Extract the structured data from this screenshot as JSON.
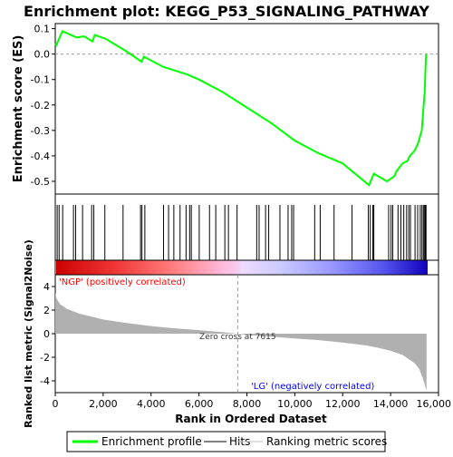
{
  "chart_data": {
    "type": "line",
    "title": "Enrichment plot: KEGG_P53_SIGNALING_PATHWAY",
    "xlabel": "Rank in Ordered Dataset",
    "xlim": [
      0,
      16000
    ],
    "x_ticks": [
      "0",
      "2,000",
      "4,000",
      "6,000",
      "8,000",
      "10,000",
      "12,000",
      "14,000",
      "16,000"
    ],
    "panels": {
      "es": {
        "ylabel": "Enrichment score (ES)",
        "ylim": [
          -0.55,
          0.12
        ],
        "y_ticks": [
          "0.1",
          "0.0",
          "-0.1",
          "-0.2",
          "-0.3",
          "-0.4",
          "-0.5"
        ],
        "series": [
          {
            "name": "Enrichment profile",
            "color": "#00ff00",
            "x": [
              0,
              40,
              300,
              900,
              1200,
              1550,
              1650,
              2100,
              2900,
              3300,
              3600,
              3700,
              4500,
              5500,
              6000,
              7000,
              8000,
              9000,
              10000,
              11000,
              12000,
              13100,
              13300,
              13850,
              14000,
              14150,
              14250,
              14500,
              14700,
              14800,
              15000,
              15150,
              15300,
              15380,
              15420,
              15460,
              15480
            ],
            "y": [
              0.04,
              0.035,
              0.09,
              0.065,
              0.07,
              0.05,
              0.075,
              0.06,
              0.015,
              -0.01,
              -0.03,
              -0.01,
              -0.05,
              -0.08,
              -0.1,
              -0.15,
              -0.21,
              -0.27,
              -0.34,
              -0.39,
              -0.43,
              -0.515,
              -0.47,
              -0.5,
              -0.49,
              -0.48,
              -0.46,
              -0.43,
              -0.42,
              -0.4,
              -0.38,
              -0.35,
              -0.3,
              -0.2,
              -0.15,
              -0.05,
              0.0
            ]
          }
        ]
      },
      "hits": {
        "name": "Hits",
        "positions": [
          80,
          160,
          310,
          760,
          850,
          1140,
          1520,
          1610,
          2070,
          2830,
          3560,
          3620,
          3740,
          4520,
          4730,
          4950,
          5210,
          5460,
          5610,
          5680,
          6010,
          6440,
          6700,
          7080,
          7230,
          7590,
          8410,
          8510,
          8780,
          8910,
          9380,
          9720,
          9870,
          9950,
          10830,
          11060,
          11640,
          12390,
          13070,
          13150,
          13260,
          13300,
          13920,
          14020,
          14090,
          14310,
          14430,
          14550,
          14670,
          14760,
          14830,
          15020,
          15130,
          15240,
          15310,
          15370,
          15420,
          15450,
          15480
        ]
      },
      "metric": {
        "name": "Ranking metric scores",
        "ylabel": "Ranked list metric (Signal2Noise)",
        "ylim": [
          -5,
          5
        ],
        "y_ticks": [
          "4",
          "2",
          "0",
          "-2",
          "-4"
        ],
        "x": [
          0,
          50,
          200,
          500,
          1000,
          2000,
          3000,
          4000,
          5000,
          6000,
          7000,
          7615,
          8000,
          9000,
          10000,
          11000,
          12000,
          13000,
          13500,
          14000,
          14500,
          15000,
          15200,
          15350,
          15450,
          15500
        ],
        "y": [
          3.5,
          3.0,
          2.5,
          2.1,
          1.7,
          1.2,
          0.9,
          0.65,
          0.45,
          0.3,
          0.12,
          0.0,
          -0.1,
          -0.25,
          -0.4,
          -0.55,
          -0.75,
          -1.0,
          -1.2,
          -1.45,
          -1.8,
          -2.5,
          -3.0,
          -3.8,
          -4.5,
          -4.8
        ]
      }
    },
    "annotations": {
      "positive_label": "'NGP' (positively correlated)",
      "negative_label": "'LG' (negatively correlated)",
      "zero_cross": "Zero cross at 7615",
      "zero_cross_x": 7615
    },
    "legend": {
      "placement": "bottom",
      "entries": [
        "Enrichment profile",
        "Hits",
        "Ranking metric scores"
      ]
    },
    "colors": {
      "profile": "#00ff00",
      "hits": "#000000",
      "metric_fill": "#b0b0b0",
      "positive_label": "#ff0000",
      "negative_label": "#0000ff"
    }
  }
}
